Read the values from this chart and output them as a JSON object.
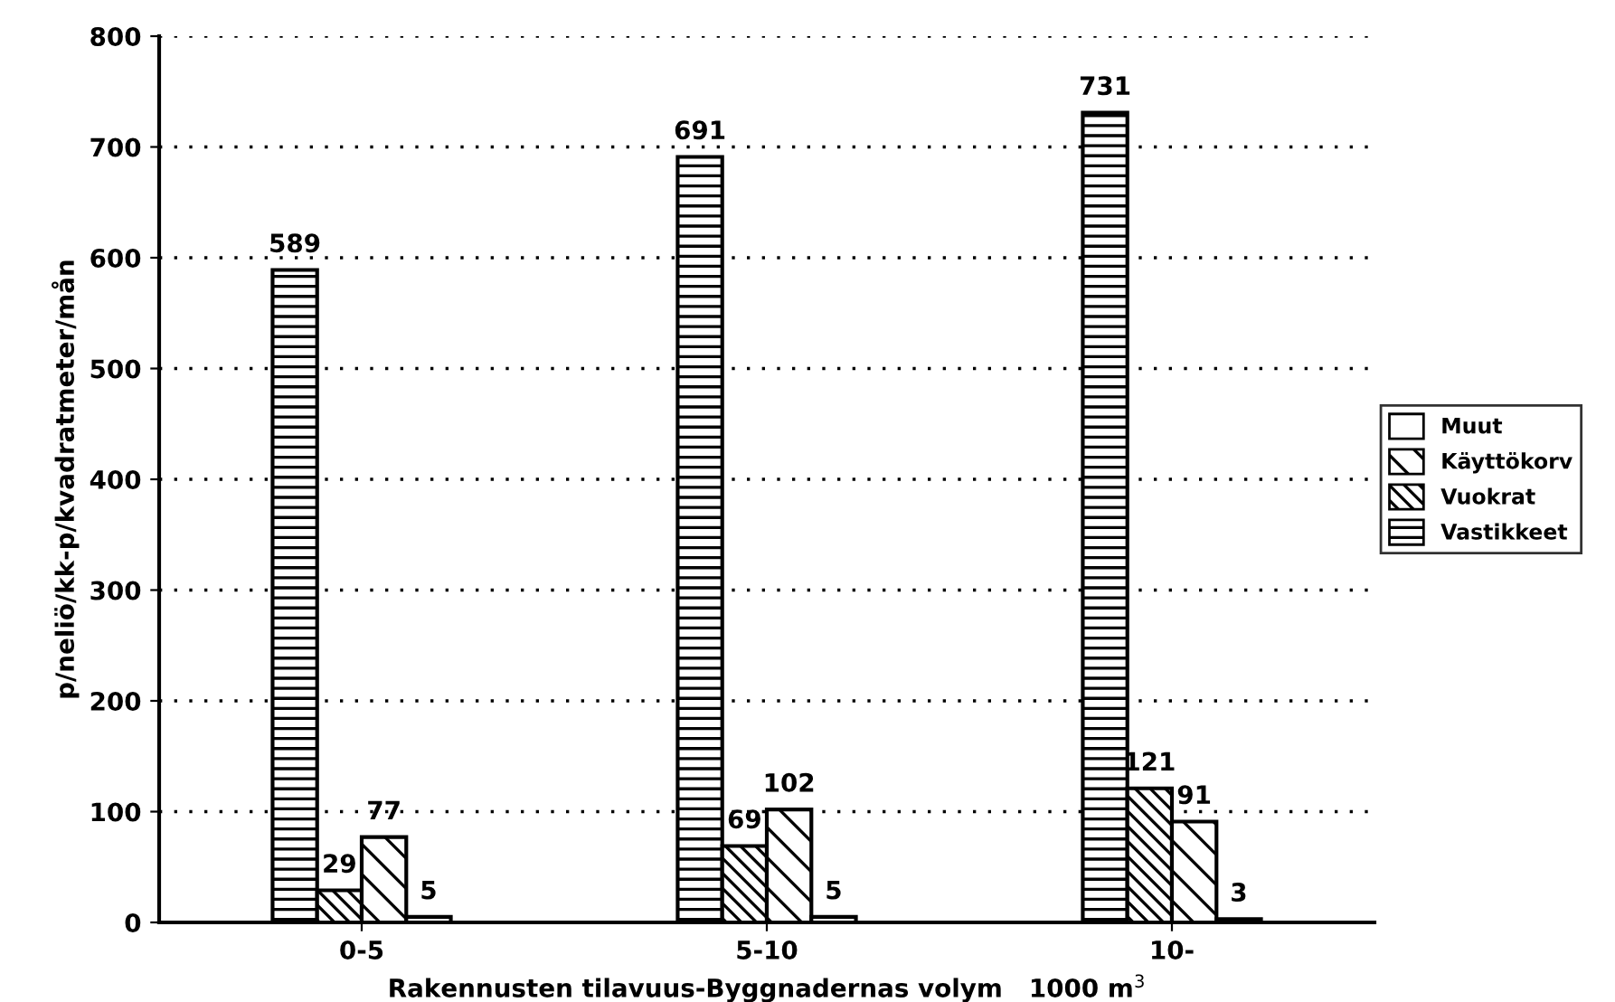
{
  "chart_data": {
    "type": "bar",
    "xlabel": "Rakennusten tilavuus-Byggnadernas volym   1000 m$^{3}$",
    "ylabel": "p/neliö/kk-p/kvadratmeter/mån",
    "categories": [
      "0-5",
      "5-10",
      "10-"
    ],
    "series": [
      {
        "name": "Vastikkeet",
        "color": "#000000",
        "values": [
          589,
          691,
          731
        ]
      },
      {
        "name": "Vuokrat",
        "color": "#000000",
        "values": [
          29,
          69,
          121
        ]
      },
      {
        "name": "Käyttökorv",
        "color": "#000000",
        "values": [
          77,
          102,
          91
        ]
      },
      {
        "name": "Muut",
        "color": "#000000",
        "values": [
          5,
          5,
          3
        ]
      }
    ],
    "ylim": [
      0,
      800
    ],
    "yticks": [
      0,
      100,
      200,
      300,
      400,
      500,
      600,
      700,
      800
    ],
    "grid": "y",
    "legend": "right",
    "data_labels": true
  }
}
